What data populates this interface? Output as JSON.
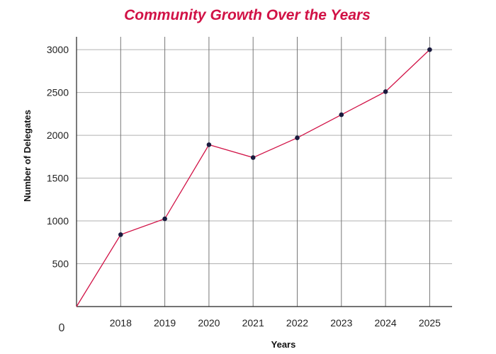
{
  "chart_data": {
    "type": "line",
    "title": "Community Growth Over the Years",
    "xlabel": "Years",
    "ylabel": "Number of Delegates",
    "origin_label": "0",
    "x_start": 2017,
    "categories": [
      "2018",
      "2019",
      "2020",
      "2021",
      "2022",
      "2023",
      "2024",
      "2025"
    ],
    "x": [
      2017,
      2018,
      2019,
      2020,
      2021,
      2022,
      2023,
      2024,
      2025
    ],
    "values": [
      0,
      840,
      1025,
      1890,
      1740,
      1970,
      2240,
      2510,
      3000
    ],
    "yticks": [
      {
        "value": 500,
        "label": "500"
      },
      {
        "value": 1000,
        "label": "1000"
      },
      {
        "value": 1500,
        "label": "1500"
      },
      {
        "value": 2000,
        "label": "2000"
      },
      {
        "value": 2500,
        "label": "2500"
      },
      {
        "value": 3000,
        "label": "3000"
      }
    ],
    "ylim": [
      0,
      3150
    ],
    "grid": true,
    "line_color": "#d11246",
    "marker_color": "#1a1a3e",
    "grid_color": "#b0b0b0"
  }
}
